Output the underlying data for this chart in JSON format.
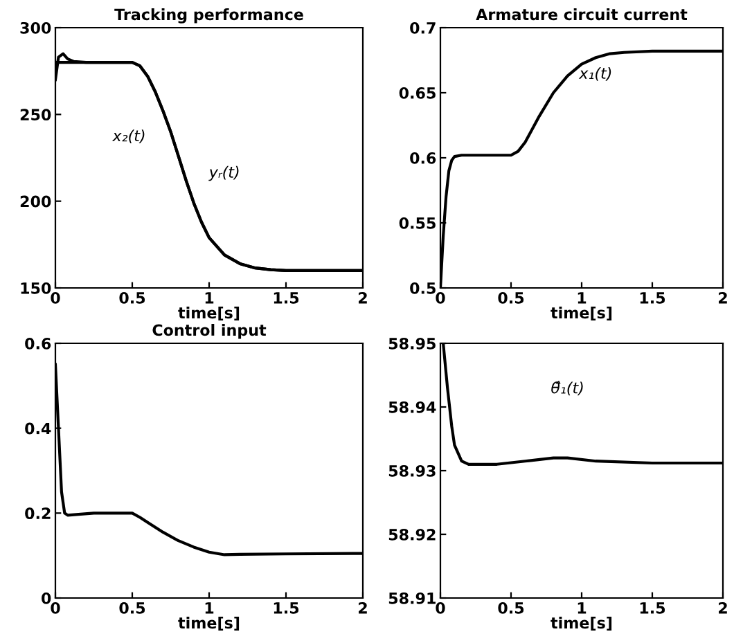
{
  "chart_data": [
    {
      "type": "line",
      "title": "Tracking performance",
      "xlabel": "time[s]",
      "xlim": [
        0,
        2
      ],
      "xticks": [
        0,
        0.5,
        1,
        1.5,
        2
      ],
      "ylim": [
        150,
        300
      ],
      "yticks": [
        150,
        200,
        250,
        300
      ],
      "grid": false,
      "legend": false,
      "annotations": [
        "x₂(t)",
        "yᵣ(t)"
      ],
      "series": [
        {
          "color": "#000000",
          "x": [
            0,
            0.02,
            0.05,
            0.08,
            0.12,
            0.2,
            0.5,
            0.55,
            0.6,
            0.65,
            0.7,
            0.75,
            0.8,
            0.85,
            0.9,
            0.95,
            1.0,
            1.1,
            1.2,
            1.3,
            1.4,
            1.5,
            2
          ],
          "values": [
            270,
            283,
            285,
            282,
            280.5,
            280,
            280,
            278,
            272,
            263,
            252,
            240,
            226,
            212,
            199,
            188,
            179,
            169,
            164,
            161.5,
            160.5,
            160,
            160
          ]
        },
        {
          "color": "#000000",
          "x": [
            0,
            0.5,
            0.55,
            0.6,
            0.65,
            0.7,
            0.75,
            0.8,
            0.85,
            0.9,
            0.95,
            1.0,
            1.1,
            1.2,
            1.3,
            1.4,
            1.5,
            2
          ],
          "values": [
            280,
            280,
            278,
            272,
            263,
            252,
            240,
            226,
            212,
            199,
            188,
            179,
            169,
            164,
            161.5,
            160.5,
            160,
            160
          ]
        }
      ]
    },
    {
      "type": "line",
      "title": "Armature circuit current",
      "xlabel": "time[s]",
      "xlim": [
        0,
        2
      ],
      "xticks": [
        0,
        0.5,
        1,
        1.5,
        2
      ],
      "ylim": [
        0.5,
        0.7
      ],
      "yticks": [
        0.5,
        0.55,
        0.6,
        0.65,
        0.7
      ],
      "grid": false,
      "legend": false,
      "annotations": [
        "x₁(t)"
      ],
      "series": [
        {
          "color": "#000000",
          "x": [
            0,
            0.02,
            0.04,
            0.06,
            0.08,
            0.1,
            0.15,
            0.5,
            0.55,
            0.6,
            0.7,
            0.8,
            0.9,
            1.0,
            1.1,
            1.2,
            1.3,
            1.5,
            2
          ],
          "values": [
            0.5,
            0.54,
            0.57,
            0.59,
            0.598,
            0.601,
            0.602,
            0.602,
            0.605,
            0.612,
            0.632,
            0.65,
            0.663,
            0.672,
            0.677,
            0.68,
            0.681,
            0.682,
            0.682
          ]
        }
      ]
    },
    {
      "type": "line",
      "title": "Control input",
      "xlabel": "time[s]",
      "xlim": [
        0,
        2
      ],
      "xticks": [
        0,
        0.5,
        1,
        1.5,
        2
      ],
      "ylim": [
        0,
        0.6
      ],
      "yticks": [
        0,
        0.2,
        0.4,
        0.6
      ],
      "grid": false,
      "legend": false,
      "series": [
        {
          "color": "#000000",
          "x": [
            0,
            0.02,
            0.04,
            0.06,
            0.08,
            0.15,
            0.25,
            0.5,
            0.55,
            0.6,
            0.7,
            0.8,
            0.9,
            1.0,
            1.1,
            1.2,
            1.5,
            2
          ],
          "values": [
            0.55,
            0.4,
            0.25,
            0.2,
            0.195,
            0.197,
            0.2,
            0.2,
            0.19,
            0.178,
            0.155,
            0.135,
            0.12,
            0.108,
            0.102,
            0.103,
            0.104,
            0.105
          ]
        }
      ]
    },
    {
      "type": "line",
      "xlabel": "time[s]",
      "xlim": [
        0,
        2
      ],
      "xticks": [
        0,
        0.5,
        1,
        1.5,
        2
      ],
      "ylim": [
        58.91,
        58.95
      ],
      "yticks": [
        58.91,
        58.92,
        58.93,
        58.94,
        58.95
      ],
      "grid": false,
      "legend": false,
      "annotations": [
        "θ̂₁(t)"
      ],
      "series": [
        {
          "color": "#000000",
          "x": [
            0.02,
            0.05,
            0.08,
            0.1,
            0.15,
            0.2,
            0.4,
            0.6,
            0.8,
            0.9,
            1.1,
            1.5,
            2
          ],
          "values": [
            58.95,
            58.943,
            58.937,
            58.934,
            58.9315,
            58.931,
            58.931,
            58.9315,
            58.932,
            58.932,
            58.9315,
            58.9312,
            58.9312
          ]
        }
      ]
    }
  ]
}
